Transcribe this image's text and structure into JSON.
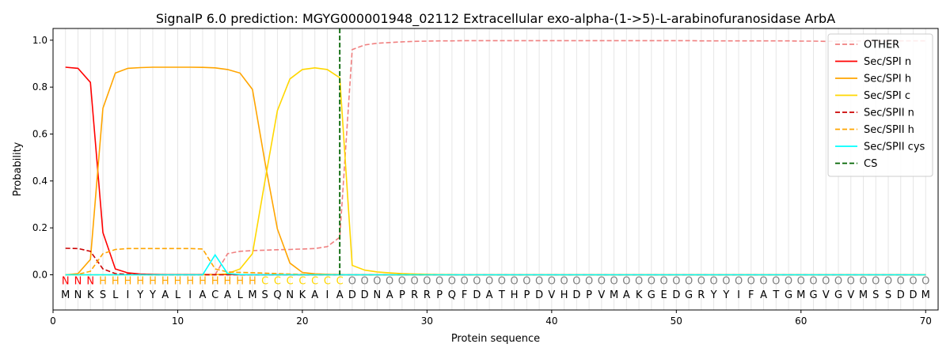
{
  "chart_data": {
    "type": "line",
    "title": "SignalP 6.0 prediction: MGYG000001948_02112 Extracellular exo-alpha-(1->5)-L-arabinofuranosidase ArbA",
    "xlabel": "Protein sequence",
    "ylabel": "Probability",
    "xlim": [
      0,
      71
    ],
    "ylim": [
      -0.15,
      1.05
    ],
    "xticks": [
      0,
      10,
      20,
      30,
      40,
      50,
      60,
      70
    ],
    "yticks": [
      0.0,
      0.2,
      0.4,
      0.6,
      0.8,
      1.0
    ],
    "xtick_labels": [
      "0",
      "10",
      "20",
      "30",
      "40",
      "50",
      "60",
      "70"
    ],
    "ytick_labels": [
      "0.0",
      "0.2",
      "0.4",
      "0.6",
      "0.8",
      "1.0"
    ],
    "grid": "vertical lines at every residue",
    "legend_position": "top-right",
    "sequence": "MNKSLIYYALIACALMSQNKAIADDNAPRRPQFDATHPDVHDPVMAKGEDGRYYIFATGMGVGVMSSDDM",
    "labels": "NNNHHHHHHHHHHHHHCCCCCCCOOOOOOOOOOOOOOOOOOOOOOOOOOOOOOOOOOOOOOOOOOOOOOO",
    "label_colors": {
      "N": "#ff0000",
      "H": "#ffa500",
      "C": "#ffd700",
      "O": "#808080"
    },
    "x": [
      1,
      2,
      3,
      4,
      5,
      6,
      7,
      8,
      9,
      10,
      11,
      12,
      13,
      14,
      15,
      16,
      17,
      18,
      19,
      20,
      21,
      22,
      23,
      24,
      25,
      26,
      27,
      28,
      29,
      30,
      31,
      32,
      33,
      34,
      35,
      36,
      37,
      38,
      39,
      40,
      41,
      42,
      43,
      44,
      45,
      46,
      47,
      48,
      49,
      50,
      51,
      52,
      53,
      54,
      55,
      56,
      57,
      58,
      59,
      60,
      61,
      62,
      63,
      64,
      65,
      66,
      67,
      68,
      69,
      70
    ],
    "series": [
      {
        "name": "OTHER",
        "color": "#f08080",
        "dash": "dashed",
        "values": [
          0.0,
          0.0,
          0.0,
          0.0,
          0.0,
          0.0,
          0.0,
          0.0,
          0.0,
          0.0,
          0.0,
          0.0,
          0.0,
          0.09,
          0.1,
          0.103,
          0.105,
          0.107,
          0.108,
          0.11,
          0.112,
          0.12,
          0.16,
          0.96,
          0.98,
          0.987,
          0.99,
          0.993,
          0.995,
          0.996,
          0.997,
          0.997,
          0.998,
          0.998,
          0.998,
          0.998,
          0.998,
          0.998,
          0.998,
          0.998,
          0.998,
          0.998,
          0.998,
          0.998,
          0.998,
          0.998,
          0.998,
          0.998,
          0.998,
          0.998,
          0.998,
          0.997,
          0.997,
          0.997,
          0.997,
          0.997,
          0.997,
          0.997,
          0.997,
          0.996,
          0.996,
          0.995,
          0.996,
          0.996,
          0.997,
          0.997,
          0.997,
          0.997,
          0.997,
          0.997
        ]
      },
      {
        "name": "Sec/SPI n",
        "color": "#ff0000",
        "dash": "solid",
        "values": [
          0.885,
          0.88,
          0.82,
          0.18,
          0.025,
          0.008,
          0.003,
          0.002,
          0.001,
          0.001,
          0.001,
          0.001,
          0.001,
          0.001,
          0.0,
          0.0,
          0.0,
          0.0,
          0.0,
          0.0,
          0.0,
          0.0,
          0.0,
          0.0,
          0.0,
          0.0,
          0.0,
          0.0,
          0.0,
          0.0,
          0.0,
          0.0,
          0.0,
          0.0,
          0.0,
          0.0,
          0.0,
          0.0,
          0.0,
          0.0,
          0.0,
          0.0,
          0.0,
          0.0,
          0.0,
          0.0,
          0.0,
          0.0,
          0.0,
          0.0,
          0.0,
          0.0,
          0.0,
          0.0,
          0.0,
          0.0,
          0.0,
          0.0,
          0.0,
          0.0,
          0.0,
          0.0,
          0.0,
          0.0,
          0.0,
          0.0,
          0.0,
          0.0,
          0.0,
          0.0
        ]
      },
      {
        "name": "Sec/SPI h",
        "color": "#ffa500",
        "dash": "solid",
        "values": [
          0.0,
          0.005,
          0.065,
          0.71,
          0.86,
          0.88,
          0.883,
          0.885,
          0.885,
          0.885,
          0.885,
          0.884,
          0.882,
          0.875,
          0.86,
          0.79,
          0.48,
          0.195,
          0.05,
          0.01,
          0.004,
          0.002,
          0.001,
          0.0,
          0.0,
          0.0,
          0.0,
          0.0,
          0.0,
          0.0,
          0.0,
          0.0,
          0.0,
          0.0,
          0.0,
          0.0,
          0.0,
          0.0,
          0.0,
          0.0,
          0.0,
          0.0,
          0.0,
          0.0,
          0.0,
          0.0,
          0.0,
          0.0,
          0.0,
          0.0,
          0.0,
          0.0,
          0.0,
          0.0,
          0.0,
          0.0,
          0.0,
          0.0,
          0.0,
          0.0,
          0.0,
          0.0,
          0.0,
          0.0,
          0.0,
          0.0,
          0.0,
          0.0,
          0.0,
          0.0
        ]
      },
      {
        "name": "Sec/SPI c",
        "color": "#ffd700",
        "dash": "solid",
        "values": [
          0.0,
          0.0,
          0.0,
          0.0,
          0.0,
          0.0,
          0.0,
          0.0,
          0.0,
          0.0,
          0.0,
          0.0,
          0.0,
          0.005,
          0.025,
          0.09,
          0.4,
          0.7,
          0.835,
          0.875,
          0.882,
          0.875,
          0.84,
          0.04,
          0.02,
          0.012,
          0.008,
          0.005,
          0.003,
          0.002,
          0.001,
          0.001,
          0.0,
          0.0,
          0.0,
          0.0,
          0.0,
          0.0,
          0.0,
          0.0,
          0.0,
          0.0,
          0.0,
          0.0,
          0.0,
          0.0,
          0.0,
          0.0,
          0.0,
          0.0,
          0.0,
          0.0,
          0.0,
          0.0,
          0.0,
          0.0,
          0.0,
          0.0,
          0.0,
          0.0,
          0.0,
          0.0,
          0.0,
          0.0,
          0.0,
          0.0,
          0.0,
          0.0,
          0.0,
          0.0
        ]
      },
      {
        "name": "Sec/SPII n",
        "color": "#cc0000",
        "dash": "dashed",
        "values": [
          0.113,
          0.112,
          0.1,
          0.025,
          0.005,
          0.002,
          0.001,
          0.0,
          0.0,
          0.0,
          0.0,
          0.0,
          0.0,
          0.0,
          0.0,
          0.0,
          0.0,
          0.0,
          0.0,
          0.0,
          0.0,
          0.0,
          0.0,
          0.0,
          0.0,
          0.0,
          0.0,
          0.0,
          0.0,
          0.0,
          0.0,
          0.0,
          0.0,
          0.0,
          0.0,
          0.0,
          0.0,
          0.0,
          0.0,
          0.0,
          0.0,
          0.0,
          0.0,
          0.0,
          0.0,
          0.0,
          0.0,
          0.0,
          0.0,
          0.0,
          0.0,
          0.0,
          0.0,
          0.0,
          0.0,
          0.0,
          0.0,
          0.0,
          0.0,
          0.0,
          0.0,
          0.0,
          0.0,
          0.0,
          0.0,
          0.0,
          0.0,
          0.0,
          0.0,
          0.0
        ]
      },
      {
        "name": "Sec/SPII h",
        "color": "#ffa500",
        "dash": "dashed",
        "values": [
          0.0,
          0.002,
          0.015,
          0.09,
          0.108,
          0.112,
          0.112,
          0.112,
          0.112,
          0.112,
          0.112,
          0.11,
          0.025,
          0.012,
          0.01,
          0.009,
          0.007,
          0.005,
          0.003,
          0.002,
          0.001,
          0.0,
          0.0,
          0.0,
          0.0,
          0.0,
          0.0,
          0.0,
          0.0,
          0.0,
          0.0,
          0.0,
          0.0,
          0.0,
          0.0,
          0.0,
          0.0,
          0.0,
          0.0,
          0.0,
          0.0,
          0.0,
          0.0,
          0.0,
          0.0,
          0.0,
          0.0,
          0.0,
          0.0,
          0.0,
          0.0,
          0.0,
          0.0,
          0.0,
          0.0,
          0.0,
          0.0,
          0.0,
          0.0,
          0.0,
          0.0,
          0.0,
          0.0,
          0.0,
          0.0,
          0.0,
          0.0,
          0.0,
          0.0,
          0.0
        ]
      },
      {
        "name": "Sec/SPII cys",
        "color": "#00ffff",
        "dash": "solid",
        "values": [
          0.0,
          0.0,
          0.0,
          0.0,
          0.0,
          0.0,
          0.0,
          0.0,
          0.0,
          0.0,
          0.0,
          0.0,
          0.085,
          0.005,
          0.001,
          0.0,
          0.0,
          0.0,
          0.0,
          0.0,
          0.0,
          0.0,
          0.0,
          0.0,
          0.0,
          0.0,
          0.0,
          0.0,
          0.0,
          0.0,
          0.0,
          0.0,
          0.0,
          0.0,
          0.0,
          0.0,
          0.0,
          0.0,
          0.0,
          0.0,
          0.0,
          0.0,
          0.0,
          0.0,
          0.0,
          0.0,
          0.0,
          0.0,
          0.0,
          0.0,
          0.0,
          0.0,
          0.0,
          0.0,
          0.0,
          0.0,
          0.0,
          0.0,
          0.0,
          0.0,
          0.0,
          0.0,
          0.0,
          0.0,
          0.0,
          0.0,
          0.0,
          0.0,
          0.0,
          0.0
        ]
      }
    ],
    "cs": {
      "name": "CS",
      "color": "#006400",
      "x": 23
    }
  }
}
